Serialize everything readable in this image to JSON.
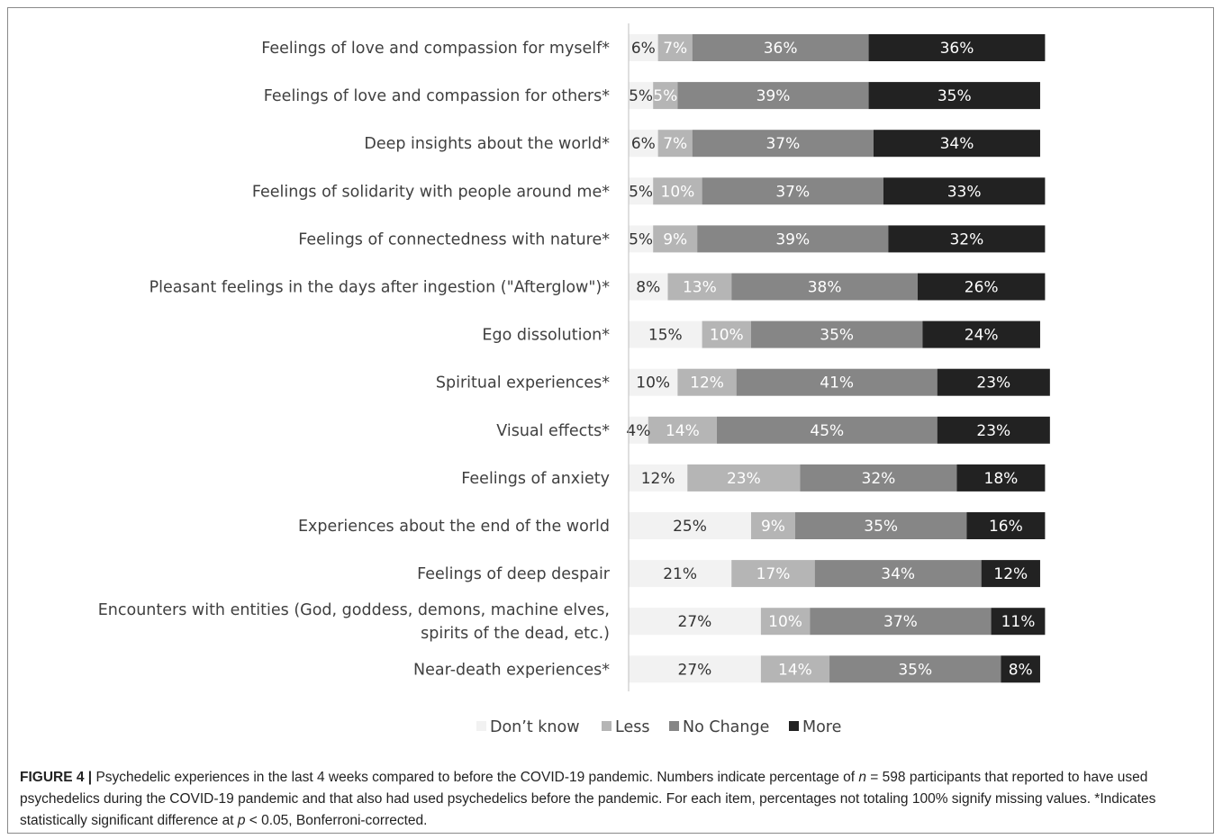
{
  "chart_data": {
    "type": "bar",
    "orientation": "horizontal",
    "stacked": true,
    "title": "",
    "xlabel": "",
    "ylabel": "",
    "xlim": [
      0,
      100
    ],
    "grid": false,
    "legend_position": "bottom",
    "categories": [
      [
        "Feelings of love and compassion for myself*"
      ],
      [
        "Feelings of love and compassion for others*"
      ],
      [
        "Deep insights about the world*"
      ],
      [
        "Feelings of solidarity with people around me*"
      ],
      [
        "Feelings of connectedness with nature*"
      ],
      [
        "Pleasant feelings in the days after ingestion (\"Afterglow\")*"
      ],
      [
        "Ego dissolution*"
      ],
      [
        "Spiritual experiences*"
      ],
      [
        "Visual effects*"
      ],
      [
        "Feelings of anxiety"
      ],
      [
        "Experiences about the end of the world"
      ],
      [
        "Feelings of deep despair"
      ],
      [
        "Encounters with entities (God, goddess, demons, machine elves,",
        "spirits of the dead, etc.)"
      ],
      [
        "Near-death experiences*"
      ]
    ],
    "series": [
      {
        "name": "Don’t know",
        "color": "#f2f2f2",
        "label_color": "#333333",
        "values": [
          6,
          5,
          6,
          5,
          5,
          8,
          15,
          10,
          4,
          12,
          25,
          21,
          27,
          27
        ]
      },
      {
        "name": "Less",
        "color": "#b5b5b5",
        "label_color": "#ffffff",
        "values": [
          7,
          5,
          7,
          10,
          9,
          13,
          10,
          12,
          14,
          23,
          9,
          17,
          10,
          14
        ]
      },
      {
        "name": "No Change",
        "color": "#868686",
        "label_color": "#ffffff",
        "values": [
          36,
          39,
          37,
          37,
          39,
          38,
          35,
          41,
          45,
          32,
          35,
          34,
          37,
          35
        ]
      },
      {
        "name": "More",
        "color": "#222222",
        "label_color": "#ffffff",
        "values": [
          36,
          35,
          34,
          33,
          32,
          26,
          24,
          23,
          23,
          18,
          16,
          12,
          11,
          8
        ]
      }
    ],
    "value_suffix": "%"
  },
  "caption": {
    "lead": "FIGURE 4 |",
    "text_1": " Psychedelic experiences in the last 4 weeks compared to before the COVID-19 pandemic. Numbers indicate percentage of ",
    "n_symbol": "n",
    "text_2": " = 598 participants that reported to have used psychedelics during the COVID-19 pandemic and that also had used psychedelics before the pandemic. For each item, percentages not totaling 100% signify missing values. *Indicates statistically significant difference at ",
    "p_symbol": "p",
    "text_3": " < 0.05, Bonferroni-corrected."
  }
}
